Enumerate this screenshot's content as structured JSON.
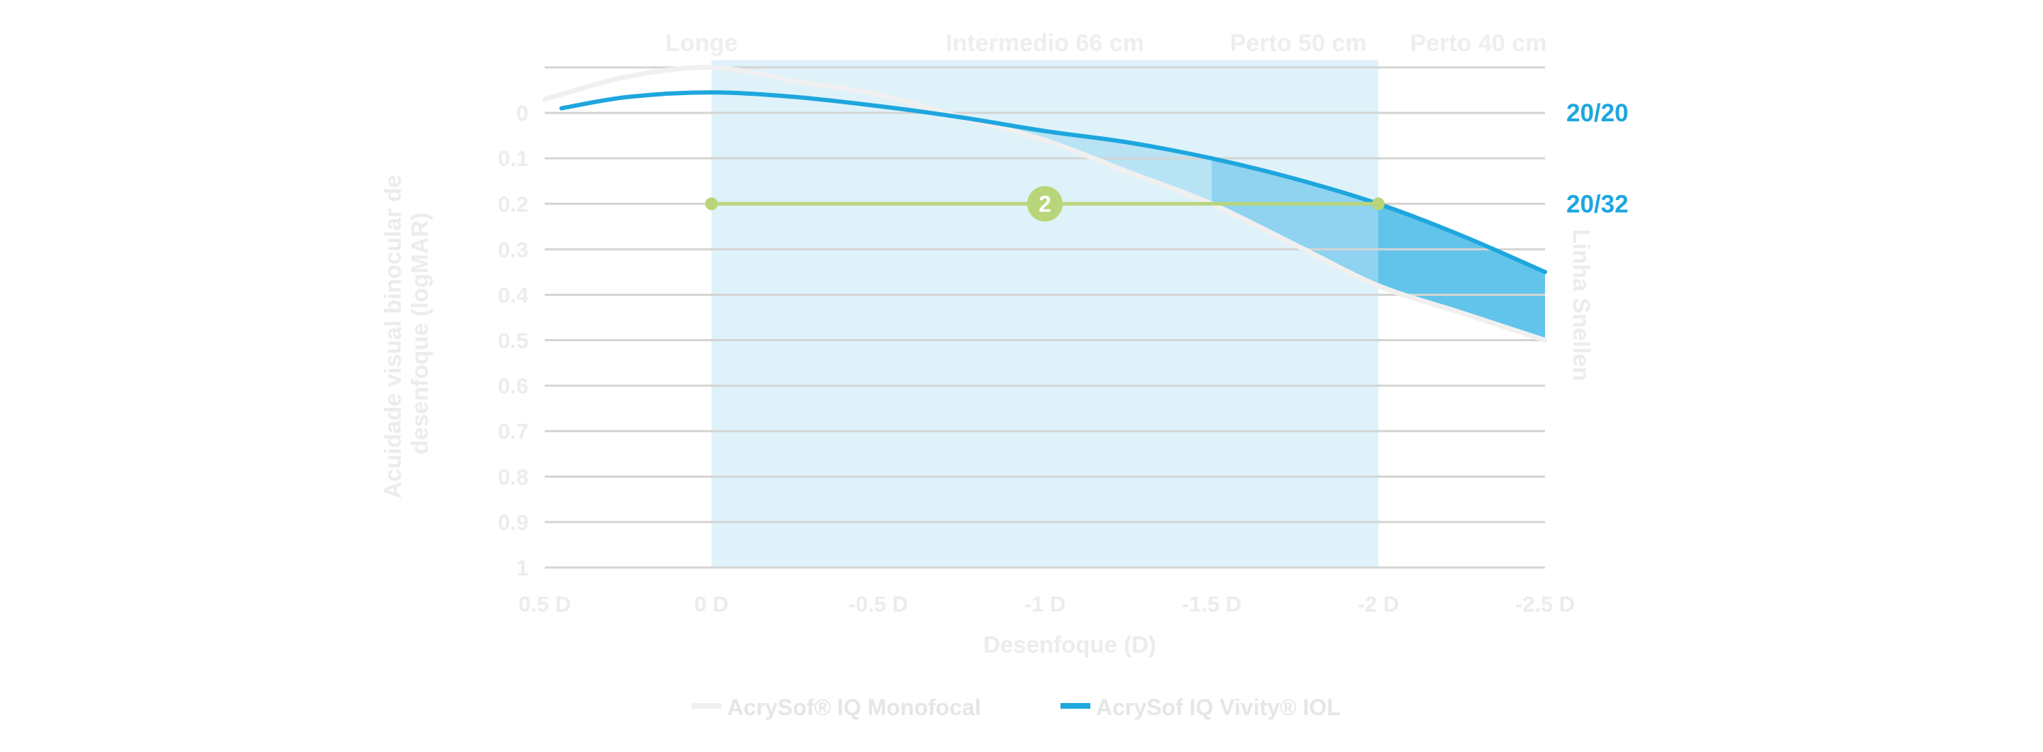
{
  "chart_data": {
    "type": "line",
    "title": "",
    "xlabel": "Desenfoque (D)",
    "ylabel": "Acuidade visual binocular de desenfoque (logMAR)",
    "y2label": "Linha Snellen",
    "x_ticks": [
      "0.5 D",
      "0 D",
      "-0.5 D",
      "-1 D",
      "-1.5 D",
      "-2 D",
      "-2.5 D"
    ],
    "y_ticks": [
      "0",
      "0.1",
      "0.2",
      "0.3",
      "0.4",
      "0.5",
      "0.6",
      "0.7",
      "0.8",
      "0.9",
      "1"
    ],
    "xlim": [
      0.5,
      -2.5
    ],
    "ylim": [
      -0.1,
      1.0
    ],
    "y_inverted": true,
    "zones": [
      {
        "label": "Longe",
        "x": 0.03
      },
      {
        "label": "Intermedio 66 cm",
        "x": -1.0
      },
      {
        "label": "Perto 50 cm",
        "x": -1.76
      },
      {
        "label": "Perto 40 cm",
        "x": -2.3
      }
    ],
    "shaded_range": [
      0,
      -2
    ],
    "snellen_labels": [
      {
        "label": "20/20",
        "y": 0
      },
      {
        "label": "20/32",
        "y": 0.2
      }
    ],
    "reference_line": {
      "y": 0.2,
      "x_start": 0,
      "x_end": -2,
      "badge": "2",
      "badge_x": -1
    },
    "series": [
      {
        "name": "AcrySof® IQ Monofocal",
        "color": "#f0f0f0",
        "x": [
          0.5,
          0.25,
          0.0,
          -0.25,
          -0.5,
          -0.75,
          -1.0,
          -1.25,
          -1.5,
          -1.75,
          -2.0,
          -2.25,
          -2.5
        ],
        "y": [
          -0.03,
          -0.08,
          -0.1,
          -0.07,
          -0.04,
          0.01,
          0.06,
          0.13,
          0.2,
          0.29,
          0.38,
          0.44,
          0.5
        ]
      },
      {
        "name": "AcrySof IQ Vivity® IOL",
        "color": "#1ea6de",
        "x": [
          0.45,
          0.25,
          0.0,
          -0.25,
          -0.5,
          -0.75,
          -1.0,
          -1.25,
          -1.5,
          -1.75,
          -2.0,
          -2.25,
          -2.5
        ],
        "y": [
          -0.01,
          -0.035,
          -0.045,
          -0.035,
          -0.015,
          0.01,
          0.04,
          0.065,
          0.1,
          0.145,
          0.2,
          0.27,
          0.35
        ]
      }
    ],
    "legend_position": "bottom"
  }
}
